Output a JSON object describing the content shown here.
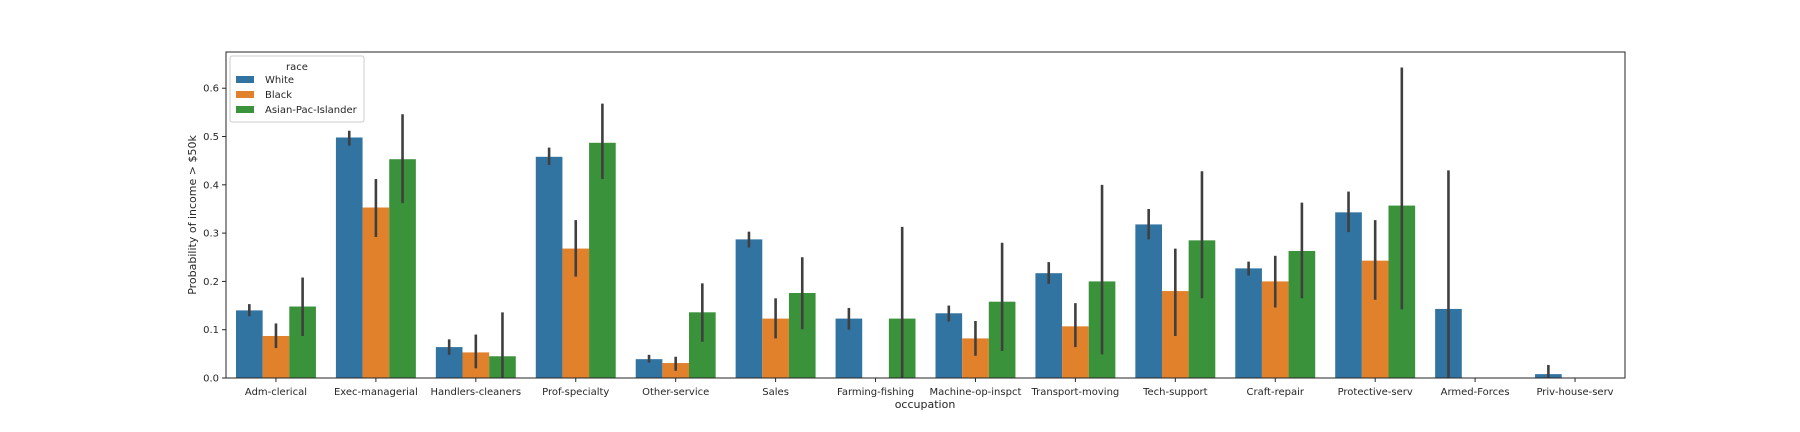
{
  "colors": {
    "White": "#3274a1",
    "Black": "#e1812c",
    "Asian-Pac-Islander": "#3a923a",
    "errorbar": "#3f3f3f",
    "axis": "#262626"
  },
  "chart_data": {
    "type": "bar",
    "xlabel": "occupation",
    "ylabel": "Probability of income > $50k",
    "ylim": [
      0,
      0.675
    ],
    "yticks": [
      "0.0",
      "0.1",
      "0.2",
      "0.3",
      "0.4",
      "0.5",
      "0.6"
    ],
    "legend": {
      "title": "race",
      "placement": "top-left"
    },
    "categories": [
      "Adm-clerical",
      "Exec-managerial",
      "Handlers-cleaners",
      "Prof-specialty",
      "Other-service",
      "Sales",
      "Farming-fishing",
      "Machine-op-inspct",
      "Transport-moving",
      "Tech-support",
      "Craft-repair",
      "Protective-serv",
      "Armed-Forces",
      "Priv-house-serv"
    ],
    "series": [
      {
        "name": "White",
        "values": [
          0.14,
          0.498,
          0.064,
          0.458,
          0.039,
          0.287,
          0.123,
          0.134,
          0.217,
          0.318,
          0.227,
          0.343,
          0.143,
          0.008
        ],
        "ci": [
          [
            0.128,
            0.153
          ],
          [
            0.481,
            0.512
          ],
          [
            0.048,
            0.08
          ],
          [
            0.441,
            0.477
          ],
          [
            0.032,
            0.048
          ],
          [
            0.27,
            0.303
          ],
          [
            0.1,
            0.145
          ],
          [
            0.117,
            0.15
          ],
          [
            0.195,
            0.24
          ],
          [
            0.287,
            0.35
          ],
          [
            0.212,
            0.241
          ],
          [
            0.302,
            0.386
          ],
          [
            0.0,
            0.43
          ],
          [
            0.0,
            0.027
          ]
        ]
      },
      {
        "name": "Black",
        "values": [
          0.087,
          0.353,
          0.053,
          0.268,
          0.031,
          0.123,
          null,
          0.082,
          0.107,
          0.18,
          0.2,
          0.243,
          null,
          null
        ],
        "ci": [
          [
            0.062,
            0.113
          ],
          [
            0.292,
            0.412
          ],
          [
            0.02,
            0.09
          ],
          [
            0.21,
            0.327
          ],
          [
            0.015,
            0.044
          ],
          [
            0.082,
            0.165
          ],
          null,
          [
            0.046,
            0.118
          ],
          [
            0.064,
            0.155
          ],
          [
            0.087,
            0.268
          ],
          [
            0.146,
            0.253
          ],
          [
            0.162,
            0.327
          ],
          null,
          null
        ]
      },
      {
        "name": "Asian-Pac-Islander",
        "values": [
          0.148,
          0.453,
          0.045,
          0.487,
          0.136,
          0.176,
          0.123,
          0.158,
          0.2,
          0.285,
          0.263,
          0.357,
          null,
          null
        ],
        "ci": [
          [
            0.087,
            0.208
          ],
          [
            0.362,
            0.546
          ],
          [
            0.0,
            0.136
          ],
          [
            0.412,
            0.568
          ],
          [
            0.075,
            0.196
          ],
          [
            0.101,
            0.25
          ],
          [
            0.0,
            0.313
          ],
          [
            0.056,
            0.28
          ],
          [
            0.049,
            0.4
          ],
          [
            0.165,
            0.428
          ],
          [
            0.165,
            0.363
          ],
          [
            0.142,
            0.643
          ],
          null,
          null
        ]
      }
    ]
  }
}
